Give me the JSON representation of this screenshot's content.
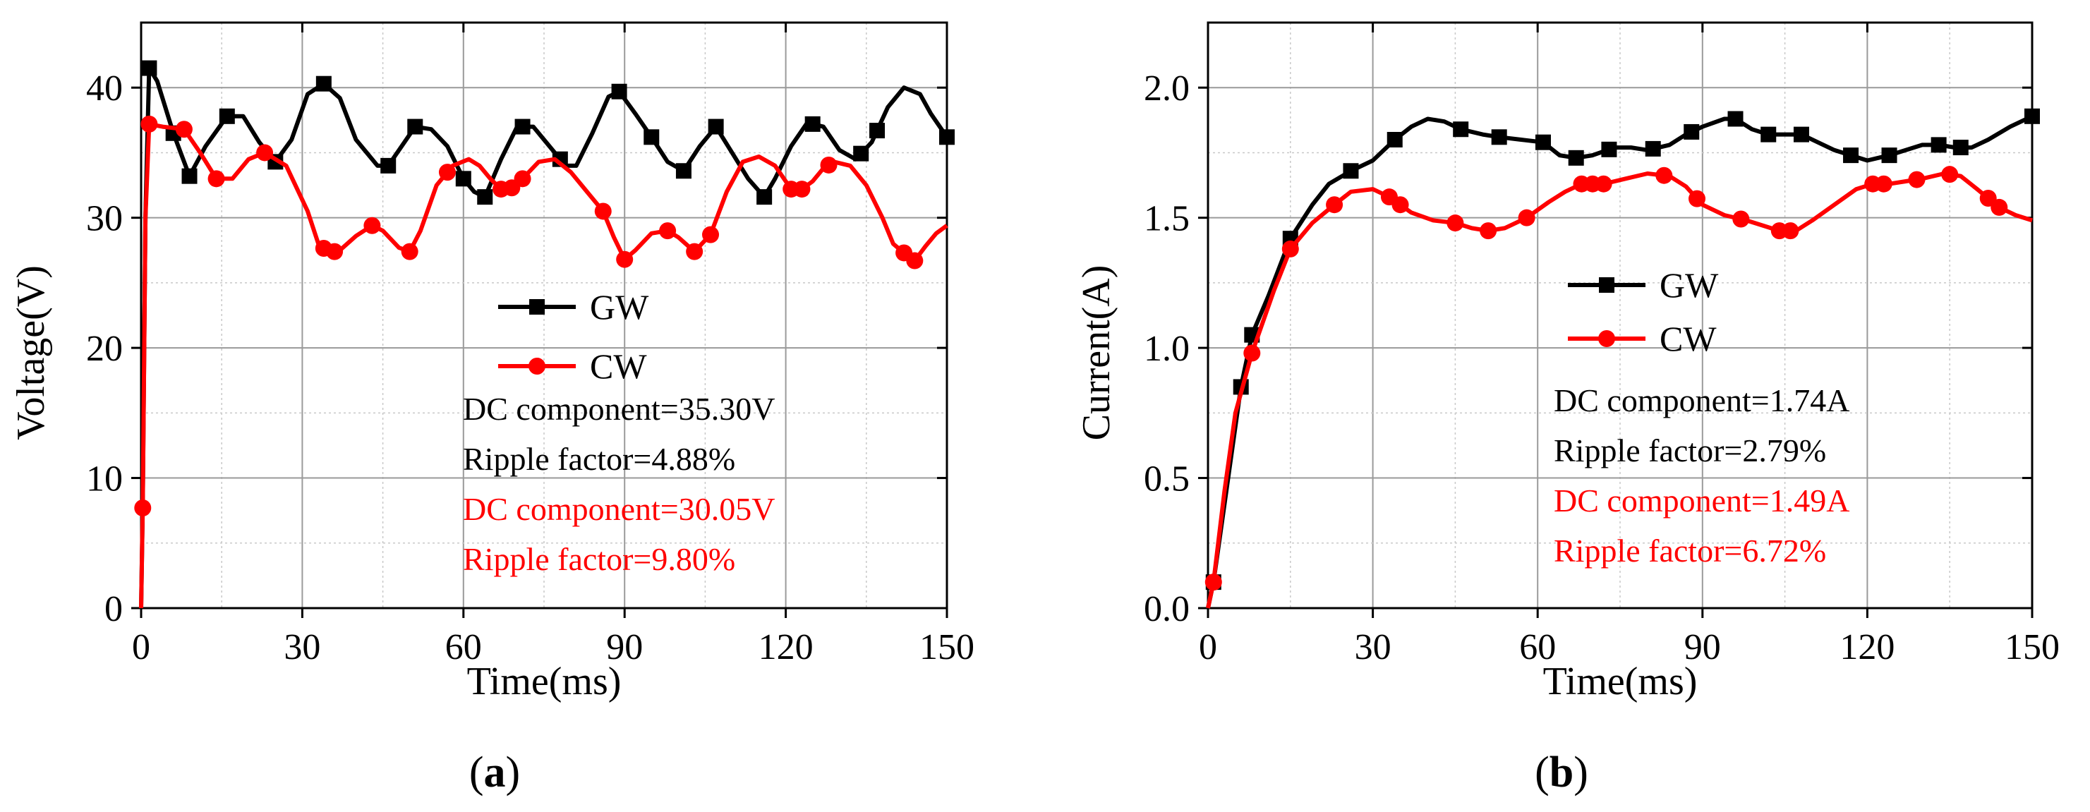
{
  "chart_data": [
    {
      "type": "line",
      "panel_label": "a",
      "xlabel": "Time(ms)",
      "ylabel": "Voltage(V)",
      "xlim": [
        0,
        150
      ],
      "ylim": [
        0,
        45
      ],
      "xticks": [
        0,
        30,
        60,
        90,
        120,
        150
      ],
      "yticks": [
        0,
        10,
        20,
        30,
        40
      ],
      "grid": true,
      "legend_position": "center",
      "series": [
        {
          "name": "GW",
          "color": "#000000",
          "marker": "square",
          "points": [
            [
              0,
              0
            ],
            [
              0.3,
              8
            ],
            [
              0.8,
              30
            ],
            [
              1.5,
              41.5
            ],
            [
              3,
              40.5
            ],
            [
              6,
              36.5
            ],
            [
              9,
              33.2
            ],
            [
              12,
              35.5
            ],
            [
              16,
              37.8
            ],
            [
              19,
              37.8
            ],
            [
              22,
              35.8
            ],
            [
              25,
              34.3
            ],
            [
              28,
              36
            ],
            [
              31,
              39.5
            ],
            [
              34,
              40.3
            ],
            [
              37,
              39.2
            ],
            [
              40,
              36
            ],
            [
              44,
              34
            ],
            [
              46,
              34
            ],
            [
              49,
              35.8
            ],
            [
              51,
              37
            ],
            [
              54,
              36.8
            ],
            [
              57,
              35.5
            ],
            [
              60,
              33
            ],
            [
              62,
              32
            ],
            [
              64,
              31.6
            ],
            [
              67,
              34.5
            ],
            [
              70,
              37
            ],
            [
              73,
              37
            ],
            [
              76,
              35.5
            ],
            [
              79,
              34
            ],
            [
              81,
              34
            ],
            [
              84,
              36.5
            ],
            [
              87,
              39.3
            ],
            [
              89,
              39.7
            ],
            [
              92,
              38
            ],
            [
              95,
              36.2
            ],
            [
              98,
              34.3
            ],
            [
              101,
              33.6
            ],
            [
              104,
              35.5
            ],
            [
              107,
              37
            ],
            [
              110,
              35
            ],
            [
              113,
              33
            ],
            [
              116,
              31.6
            ],
            [
              118,
              33
            ],
            [
              121,
              35.5
            ],
            [
              124,
              37.3
            ],
            [
              127,
              37
            ],
            [
              130,
              35.2
            ],
            [
              133,
              34.5
            ],
            [
              136,
              35.8
            ],
            [
              139,
              38.5
            ],
            [
              142,
              40
            ],
            [
              145,
              39.5
            ],
            [
              147,
              38
            ],
            [
              150,
              36.2
            ]
          ],
          "markers_x": [
            1.5,
            6,
            9,
            16,
            25,
            34,
            46,
            51,
            60,
            64,
            71,
            78,
            89,
            95,
            101,
            107,
            116,
            125,
            134,
            137,
            150
          ]
        },
        {
          "name": "CW",
          "color": "#ff0000",
          "marker": "circle",
          "points": [
            [
              0,
              0
            ],
            [
              0.3,
              7.7
            ],
            [
              0.8,
              30
            ],
            [
              1.5,
              37.2
            ],
            [
              4,
              37
            ],
            [
              8,
              36.8
            ],
            [
              11,
              35
            ],
            [
              14,
              33
            ],
            [
              17,
              33
            ],
            [
              20,
              34.5
            ],
            [
              23,
              35
            ],
            [
              27,
              34
            ],
            [
              31,
              30.5
            ],
            [
              33,
              28
            ],
            [
              35,
              27.3
            ],
            [
              37,
              27.5
            ],
            [
              40,
              28.6
            ],
            [
              43,
              29.4
            ],
            [
              45,
              29
            ],
            [
              48,
              27.7
            ],
            [
              50,
              27.4
            ],
            [
              52,
              29
            ],
            [
              55,
              32.5
            ],
            [
              58,
              34
            ],
            [
              61,
              34.5
            ],
            [
              63,
              34
            ],
            [
              65,
              33
            ],
            [
              67,
              32.2
            ],
            [
              69,
              32.3
            ],
            [
              71,
              33
            ],
            [
              74,
              34.3
            ],
            [
              77,
              34.5
            ],
            [
              80,
              33.5
            ],
            [
              83,
              32
            ],
            [
              86,
              30.5
            ],
            [
              88,
              28.5
            ],
            [
              90,
              26.8
            ],
            [
              92,
              27.5
            ],
            [
              95,
              28.8
            ],
            [
              98,
              29
            ],
            [
              100,
              28.5
            ],
            [
              103,
              27.4
            ],
            [
              106,
              28.7
            ],
            [
              109,
              32
            ],
            [
              112,
              34.3
            ],
            [
              115,
              34.7
            ],
            [
              118,
              34
            ],
            [
              121,
              32.2
            ],
            [
              123,
              32.2
            ],
            [
              125,
              32.8
            ],
            [
              127,
              33.8
            ],
            [
              129,
              34.3
            ],
            [
              132,
              34
            ],
            [
              135,
              32.5
            ],
            [
              138,
              30
            ],
            [
              140,
              28
            ],
            [
              142,
              27.3
            ],
            [
              144,
              26.7
            ],
            [
              146,
              27.8
            ],
            [
              148,
              28.8
            ],
            [
              150,
              29.4
            ]
          ],
          "markers_x": [
            0.3,
            1.5,
            8,
            14,
            23,
            34,
            36,
            43,
            50,
            57,
            67,
            69,
            71,
            86,
            90,
            98,
            103,
            106,
            121,
            123,
            128,
            142,
            144
          ]
        }
      ],
      "annotations": [
        {
          "text": "DC component=35.30V",
          "color": "#000000"
        },
        {
          "text": "Ripple factor=4.88%",
          "color": "#000000"
        },
        {
          "text": "DC component=30.05V",
          "color": "#ff0000"
        },
        {
          "text": "Ripple factor=9.80%",
          "color": "#ff0000"
        }
      ]
    },
    {
      "type": "line",
      "panel_label": "b",
      "xlabel": "Time(ms)",
      "ylabel": "Current(A)",
      "xlim": [
        0,
        150
      ],
      "ylim": [
        0,
        2.25
      ],
      "xticks": [
        0,
        30,
        60,
        90,
        120,
        150
      ],
      "yticks": [
        0.0,
        0.5,
        1.0,
        1.5,
        2.0
      ],
      "grid": true,
      "legend_position": "center",
      "series": [
        {
          "name": "GW",
          "color": "#000000",
          "marker": "square",
          "points": [
            [
              0,
              0
            ],
            [
              1,
              0.1
            ],
            [
              3,
              0.4
            ],
            [
              6,
              0.85
            ],
            [
              8,
              1.05
            ],
            [
              11,
              1.2
            ],
            [
              15,
              1.42
            ],
            [
              19,
              1.55
            ],
            [
              22,
              1.63
            ],
            [
              26,
              1.68
            ],
            [
              30,
              1.72
            ],
            [
              34,
              1.8
            ],
            [
              37,
              1.85
            ],
            [
              40,
              1.88
            ],
            [
              43,
              1.87
            ],
            [
              46,
              1.84
            ],
            [
              50,
              1.82
            ],
            [
              53,
              1.81
            ],
            [
              57,
              1.8
            ],
            [
              61,
              1.79
            ],
            [
              64,
              1.74
            ],
            [
              67,
              1.73
            ],
            [
              70,
              1.74
            ],
            [
              74,
              1.77
            ],
            [
              77,
              1.77
            ],
            [
              80,
              1.76
            ],
            [
              84,
              1.78
            ],
            [
              87,
              1.82
            ],
            [
              90,
              1.85
            ],
            [
              94,
              1.88
            ],
            [
              96,
              1.88
            ],
            [
              99,
              1.84
            ],
            [
              102,
              1.82
            ],
            [
              105,
              1.82
            ],
            [
              108,
              1.82
            ],
            [
              111,
              1.79
            ],
            [
              114,
              1.76
            ],
            [
              117,
              1.74
            ],
            [
              120,
              1.72
            ],
            [
              124,
              1.74
            ],
            [
              127,
              1.76
            ],
            [
              130,
              1.78
            ],
            [
              133,
              1.78
            ],
            [
              136,
              1.77
            ],
            [
              139,
              1.77
            ],
            [
              142,
              1.8
            ],
            [
              146,
              1.85
            ],
            [
              150,
              1.89
            ]
          ],
          "markers_x": [
            1,
            6,
            8,
            15,
            26,
            34,
            46,
            53,
            61,
            67,
            73,
            81,
            88,
            96,
            102,
            108,
            117,
            124,
            133,
            137,
            150
          ]
        },
        {
          "name": "CW",
          "color": "#ff0000",
          "marker": "circle",
          "points": [
            [
              0,
              0
            ],
            [
              1,
              0.1
            ],
            [
              3,
              0.45
            ],
            [
              5,
              0.75
            ],
            [
              8,
              0.98
            ],
            [
              12,
              1.22
            ],
            [
              15,
              1.38
            ],
            [
              19,
              1.48
            ],
            [
              23,
              1.55
            ],
            [
              26,
              1.6
            ],
            [
              30,
              1.61
            ],
            [
              33,
              1.58
            ],
            [
              37,
              1.52
            ],
            [
              41,
              1.49
            ],
            [
              45,
              1.48
            ],
            [
              48,
              1.46
            ],
            [
              51,
              1.45
            ],
            [
              54,
              1.46
            ],
            [
              58,
              1.5
            ],
            [
              62,
              1.56
            ],
            [
              65,
              1.6
            ],
            [
              68,
              1.63
            ],
            [
              72,
              1.63
            ],
            [
              76,
              1.65
            ],
            [
              80,
              1.67
            ],
            [
              84,
              1.66
            ],
            [
              87,
              1.62
            ],
            [
              90,
              1.55
            ],
            [
              94,
              1.51
            ],
            [
              98,
              1.49
            ],
            [
              101,
              1.47
            ],
            [
              104,
              1.45
            ],
            [
              107,
              1.45
            ],
            [
              110,
              1.49
            ],
            [
              114,
              1.55
            ],
            [
              118,
              1.61
            ],
            [
              121,
              1.63
            ],
            [
              124,
              1.63
            ],
            [
              127,
              1.64
            ],
            [
              130,
              1.65
            ],
            [
              134,
              1.67
            ],
            [
              137,
              1.66
            ],
            [
              140,
              1.61
            ],
            [
              144,
              1.54
            ],
            [
              147,
              1.51
            ],
            [
              150,
              1.49
            ]
          ],
          "markers_x": [
            1,
            8,
            15,
            23,
            33,
            35,
            45,
            51,
            58,
            68,
            70,
            72,
            83,
            89,
            97,
            104,
            106,
            121,
            123,
            129,
            135,
            142,
            144
          ]
        }
      ],
      "annotations": [
        {
          "text": "DC component=1.74A",
          "color": "#000000"
        },
        {
          "text": "Ripple factor=2.79%",
          "color": "#000000"
        },
        {
          "text": "DC component=1.49A",
          "color": "#ff0000"
        },
        {
          "text": "Ripple factor=6.72%",
          "color": "#ff0000"
        }
      ]
    }
  ]
}
